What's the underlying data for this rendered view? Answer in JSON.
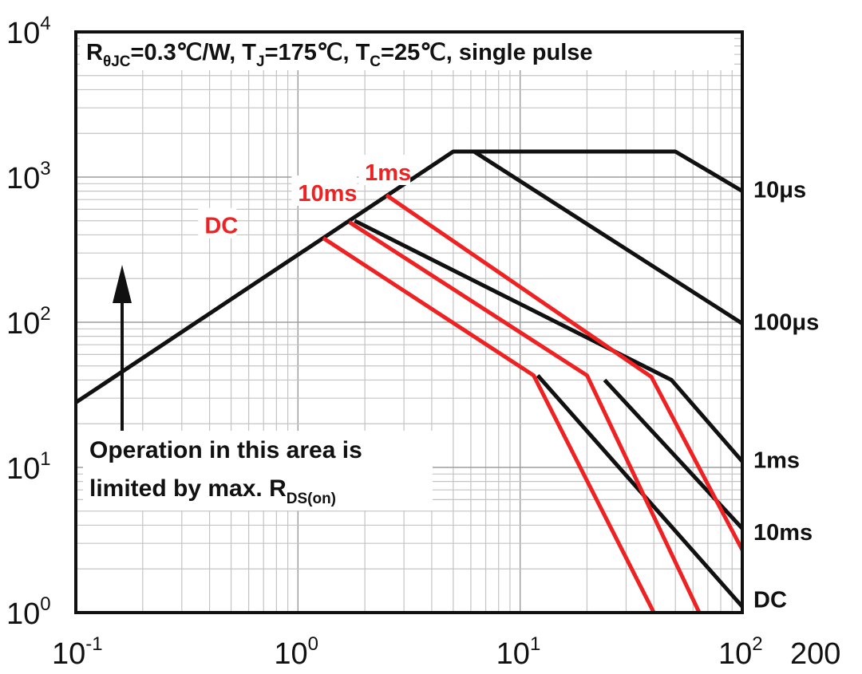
{
  "chart_data": {
    "type": "line",
    "x_scale": "log",
    "y_scale": "log",
    "xlim": [
      0.1,
      100
    ],
    "ylim": [
      1,
      10000
    ],
    "grid": true,
    "x_ticks": [
      {
        "base": "10",
        "exp": "-1"
      },
      {
        "base": "10",
        "exp": "0"
      },
      {
        "base": "10",
        "exp": "1"
      },
      {
        "base": "10",
        "exp": "2"
      }
    ],
    "x_extra_tick": "200",
    "y_ticks": [
      {
        "base": "10",
        "exp": "0"
      },
      {
        "base": "10",
        "exp": "1"
      },
      {
        "base": "10",
        "exp": "2"
      },
      {
        "base": "10",
        "exp": "3"
      },
      {
        "base": "10",
        "exp": "4"
      }
    ],
    "conditions": {
      "r_main": "R",
      "r_sub": "θJC",
      "r_value": "=0.3℃/W, T",
      "tj_sub": "J",
      "tj_value": "=175℃, T",
      "tc_sub": "C",
      "tc_value": "=25℃, single pulse"
    },
    "note": {
      "line1": "Operation in this area is",
      "line2_main": "limited by max. R",
      "line2_sub": "DS(on)"
    },
    "series": [
      {
        "name": "10μs",
        "color": "#111111",
        "points": [
          [
            0.1,
            28
          ],
          [
            5.0,
            1500
          ],
          [
            50,
            1500
          ],
          [
            100,
            800
          ]
        ]
      },
      {
        "name": "100μs",
        "color": "#111111",
        "points": [
          [
            6.2,
            1500
          ],
          [
            100,
            98
          ]
        ]
      },
      {
        "name": "1ms",
        "color": "#111111",
        "points": [
          [
            1.8,
            500
          ],
          [
            48,
            40
          ],
          [
            100,
            11
          ]
        ]
      },
      {
        "name": "10ms",
        "color": "#111111",
        "points": [
          [
            24,
            40
          ],
          [
            100,
            3.8
          ]
        ]
      },
      {
        "name": "DC",
        "color": "#111111",
        "points": [
          [
            12,
            43
          ],
          [
            100,
            1.1
          ]
        ]
      },
      {
        "name": "1ms",
        "color": "#ee2222",
        "points": [
          [
            2.5,
            750
          ],
          [
            39,
            42
          ],
          [
            100,
            2.7
          ]
        ]
      },
      {
        "name": "10ms",
        "color": "#ee2222",
        "points": [
          [
            1.7,
            490
          ],
          [
            20,
            43
          ],
          [
            64,
            1
          ]
        ]
      },
      {
        "name": "DC",
        "color": "#ee2222",
        "points": [
          [
            1.3,
            380
          ],
          [
            11.5,
            43
          ],
          [
            40,
            1
          ]
        ]
      }
    ],
    "right_labels": [
      {
        "text": "10μs",
        "y": 800
      },
      {
        "text": "100μs",
        "y": 98
      },
      {
        "text": "1ms",
        "y": 11
      },
      {
        "text": "10ms",
        "y": 3.5
      },
      {
        "text": "DC",
        "y": 1.2
      }
    ],
    "red_labels": [
      {
        "text": "1ms",
        "x": 2.0,
        "y": 1000
      },
      {
        "text": "10ms",
        "x": 1.0,
        "y": 720
      },
      {
        "text": "DC",
        "x": 0.38,
        "y": 430
      }
    ]
  }
}
